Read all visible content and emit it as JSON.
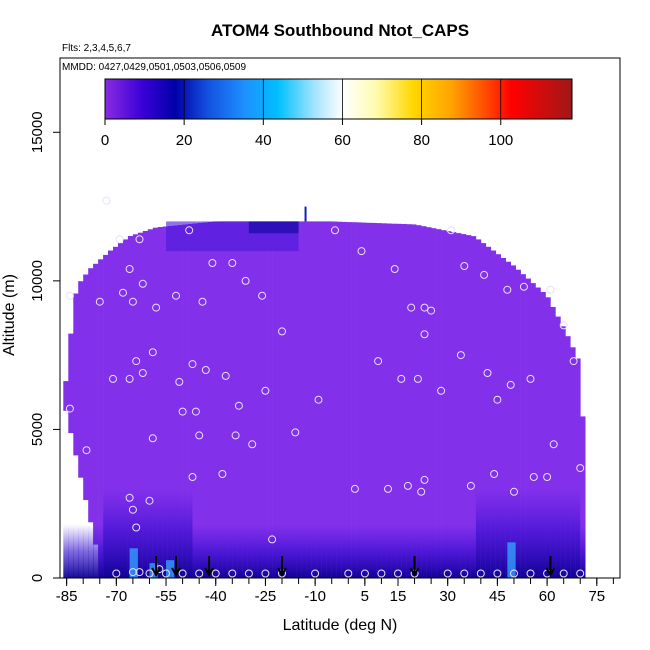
{
  "chart_data": {
    "type": "heatmap",
    "title": "ATOM4 Southbound Ntot_CAPS",
    "flights_note": "Flts: 2,3,4,5,6,7",
    "dates_note": "MMDD: 0427,0429,0501,0503,0506,0509",
    "xlabel": "Latitude (deg N)",
    "ylabel": "Altitude (m)",
    "xlim": [
      -87,
      82
    ],
    "ylim": [
      0,
      17500
    ],
    "x_ticks": [
      "-85",
      "-70",
      "-55",
      "-40",
      "-25",
      "-10",
      "5",
      "15",
      "30",
      "45",
      "60",
      "75"
    ],
    "x_tick_values": [
      -85,
      -70,
      -55,
      -40,
      -25,
      -10,
      5,
      15,
      30,
      45,
      60,
      75
    ],
    "y_ticks": [
      "0",
      "5000",
      "10000",
      "15000"
    ],
    "y_tick_values": [
      0,
      5000,
      10000,
      15000
    ],
    "colorbar": {
      "range": [
        0,
        118
      ],
      "ticks": [
        "0",
        "20",
        "40",
        "60",
        "80",
        "100"
      ],
      "tick_values": [
        0,
        20,
        40,
        60,
        80,
        100
      ]
    },
    "arrow_latitudes": [
      -58,
      -52,
      -42,
      -20,
      20,
      61
    ],
    "profile_points": [
      [
        -84,
        5700
      ],
      [
        -84,
        9500
      ],
      [
        -79,
        4300
      ],
      [
        -75,
        9300
      ],
      [
        -73,
        12700
      ],
      [
        -71,
        6700
      ],
      [
        -69,
        11400
      ],
      [
        -68,
        9600
      ],
      [
        -66,
        10400
      ],
      [
        -66,
        6700
      ],
      [
        -66,
        2700
      ],
      [
        -65,
        2300
      ],
      [
        -64,
        1700
      ],
      [
        -65,
        9300
      ],
      [
        -64,
        7300
      ],
      [
        -63,
        11400
      ],
      [
        -62,
        9900
      ],
      [
        -62,
        6900
      ],
      [
        -60,
        2600
      ],
      [
        -59,
        4700
      ],
      [
        -59,
        7600
      ],
      [
        -58,
        9100
      ],
      [
        -57,
        300
      ],
      [
        -52,
        9500
      ],
      [
        -51,
        6600
      ],
      [
        -50,
        5600
      ],
      [
        -48,
        11700
      ],
      [
        -47,
        7200
      ],
      [
        -47,
        3400
      ],
      [
        -46,
        5600
      ],
      [
        -45,
        4800
      ],
      [
        -44,
        9300
      ],
      [
        -43,
        7000
      ],
      [
        -41,
        10600
      ],
      [
        -38,
        3500
      ],
      [
        -37,
        6800
      ],
      [
        -35,
        10600
      ],
      [
        -34,
        4800
      ],
      [
        -33,
        5800
      ],
      [
        -31,
        10000
      ],
      [
        -29,
        4500
      ],
      [
        -26,
        9500
      ],
      [
        -25,
        6300
      ],
      [
        -23,
        1300
      ],
      [
        -20,
        8300
      ],
      [
        -16,
        4900
      ],
      [
        -9,
        6000
      ],
      [
        -4,
        11700
      ],
      [
        2,
        3000
      ],
      [
        4,
        11000
      ],
      [
        9,
        7300
      ],
      [
        12,
        3000
      ],
      [
        14,
        10400
      ],
      [
        16,
        6700
      ],
      [
        18,
        3100
      ],
      [
        19,
        9100
      ],
      [
        21,
        6700
      ],
      [
        22,
        2900
      ],
      [
        23,
        8200
      ],
      [
        23,
        3300
      ],
      [
        23,
        9100
      ],
      [
        25,
        9000
      ],
      [
        28,
        6300
      ],
      [
        31,
        11700
      ],
      [
        34,
        7500
      ],
      [
        35,
        10500
      ],
      [
        37,
        3100
      ],
      [
        41,
        10200
      ],
      [
        42,
        6900
      ],
      [
        44,
        3500
      ],
      [
        45,
        6000
      ],
      [
        48,
        9700
      ],
      [
        49,
        6500
      ],
      [
        50,
        2900
      ],
      [
        53,
        9800
      ],
      [
        55,
        6700
      ],
      [
        56,
        3400
      ],
      [
        60,
        3400
      ],
      [
        61,
        9700
      ],
      [
        62,
        4500
      ],
      [
        65,
        8500
      ],
      [
        68,
        7300
      ],
      [
        70,
        3700
      ],
      [
        -70,
        150
      ],
      [
        -65,
        200
      ],
      [
        -63,
        200
      ],
      [
        -60,
        150
      ],
      [
        -55,
        150
      ],
      [
        -50,
        150
      ],
      [
        -45,
        150
      ],
      [
        -40,
        150
      ],
      [
        -35,
        150
      ],
      [
        -30,
        150
      ],
      [
        -25,
        150
      ],
      [
        -20,
        150
      ],
      [
        -10,
        150
      ],
      [
        0,
        150
      ],
      [
        5,
        150
      ],
      [
        10,
        150
      ],
      [
        15,
        150
      ],
      [
        20,
        150
      ],
      [
        30,
        150
      ],
      [
        35,
        150
      ],
      [
        40,
        150
      ],
      [
        45,
        150
      ],
      [
        50,
        150
      ],
      [
        55,
        150
      ],
      [
        60,
        150
      ],
      [
        65,
        150
      ],
      [
        70,
        150
      ]
    ]
  }
}
